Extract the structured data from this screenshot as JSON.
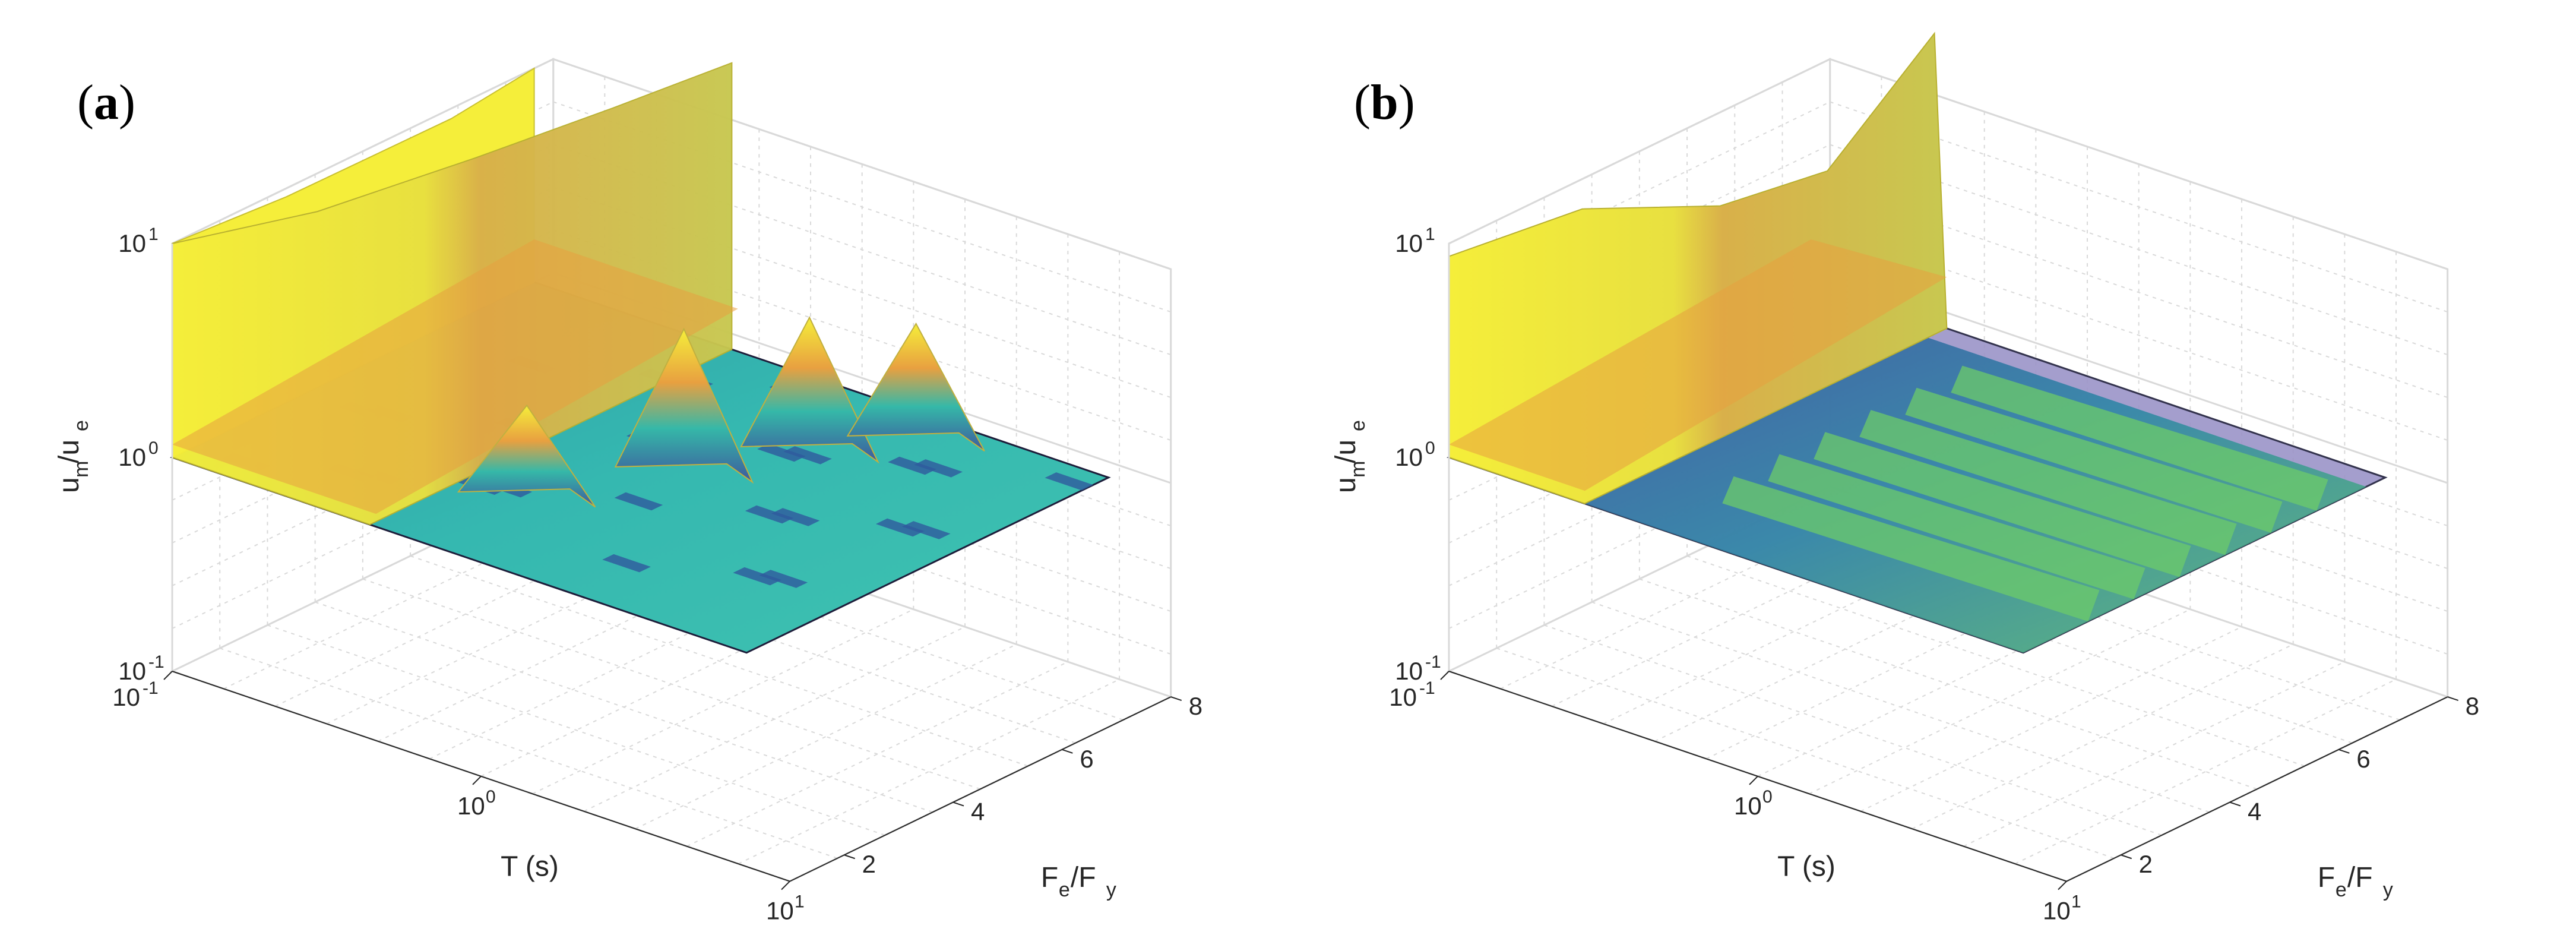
{
  "chart_data": [
    {
      "type": "surface",
      "panel_label": "(a)",
      "panel_letter": "a",
      "xlabel": "T (s)",
      "ylabel_main": "F",
      "ylabel_sub1": "e",
      "ylabel_sep": "/F",
      "ylabel_sub2": "y",
      "zlabel_main": "u",
      "zlabel_sub1": "m",
      "zlabel_sep": "/u",
      "zlabel_sub2": "e",
      "x_scale": "log",
      "z_scale": "log",
      "xlim": [
        0.1,
        10
      ],
      "ylim": [
        1,
        8
      ],
      "zlim": [
        0.1,
        10
      ],
      "x_ticks": [
        {
          "base": "10",
          "exp": "-1"
        },
        {
          "base": "10",
          "exp": "0"
        },
        {
          "base": "10",
          "exp": "1"
        }
      ],
      "y_ticks": [
        "2",
        "4",
        "6",
        "8"
      ],
      "z_ticks": [
        {
          "base": "10",
          "exp": "-1"
        },
        {
          "base": "10",
          "exp": "0"
        },
        {
          "base": "10",
          "exp": "1"
        }
      ],
      "description_values": {
        "z_max": 10,
        "z_min": 1,
        "peak_T_region": [
          0.3,
          2
        ]
      }
    },
    {
      "type": "surface",
      "panel_label": "(b)",
      "panel_letter": "b",
      "xlabel": "T (s)",
      "ylabel_main": "F",
      "ylabel_sub1": "e",
      "ylabel_sep": "/F",
      "ylabel_sub2": "y",
      "zlabel_main": "u",
      "zlabel_sub1": "m",
      "zlabel_sep": "/u",
      "zlabel_sub2": "e",
      "x_scale": "log",
      "z_scale": "log",
      "xlim": [
        0.1,
        10
      ],
      "ylim": [
        1,
        8
      ],
      "zlim": [
        0.1,
        10
      ],
      "x_ticks": [
        {
          "base": "10",
          "exp": "-1"
        },
        {
          "base": "10",
          "exp": "0"
        },
        {
          "base": "10",
          "exp": "1"
        }
      ],
      "y_ticks": [
        "2",
        "4",
        "6",
        "8"
      ],
      "z_ticks": [
        {
          "base": "10",
          "exp": "-1"
        },
        {
          "base": "10",
          "exp": "0"
        },
        {
          "base": "10",
          "exp": "1"
        }
      ],
      "description_values": {
        "z_max": 10,
        "z_min": 1,
        "peak_T_region": [
          0.1,
          0.6
        ]
      }
    }
  ],
  "colors": {
    "yellow": "#f5ee3a",
    "orange": "#e8a040",
    "teal": "#35b8a8",
    "blue": "#3d5a9e",
    "green": "#5cc070",
    "grid": "#d9d9d9",
    "axis": "#262626"
  }
}
